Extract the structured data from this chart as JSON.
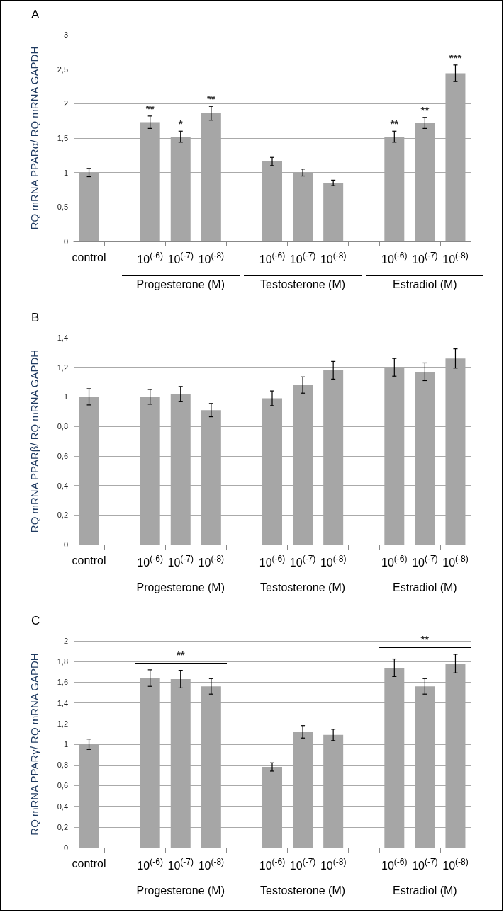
{
  "chart_data": [
    {
      "type": "bar",
      "title": "A",
      "ylabel": "RQ mRNA PPARα/ RQ mRNA GAPDH",
      "color": "#a6a6a6",
      "grid": "y",
      "categories": [
        "control",
        null,
        "10$^{(-6)}$",
        "10$^{(-7)}$",
        "10$^{(-8)}$",
        null,
        "10$^{(-6)}$",
        "10$^{(-7)}$",
        "10$^{(-8)}$",
        null,
        "10$^{(-6)}$",
        "10$^{(-7)}$",
        "10$^{(-8)}$"
      ],
      "values": [
        1.0,
        null,
        1.73,
        1.52,
        1.86,
        null,
        1.16,
        1.0,
        0.85,
        null,
        1.52,
        1.72,
        2.44
      ],
      "errors": [
        0.06,
        null,
        0.09,
        0.08,
        0.1,
        null,
        0.06,
        0.05,
        0.04,
        null,
        0.08,
        0.08,
        0.12
      ],
      "value_labels": [
        null,
        null,
        "**",
        "*",
        "**",
        null,
        null,
        null,
        null,
        null,
        "**",
        "**",
        "***"
      ],
      "ylim": [
        0,
        3
      ],
      "yticks": [
        0,
        {
          "value": 0.5,
          "label": "0,5"
        },
        1,
        {
          "value": 1.5,
          "label": "1,5"
        },
        2,
        {
          "value": 2.5,
          "label": "2,5"
        },
        3
      ],
      "annotations": [
        "Progesterone (M)",
        "Testosterone (M)",
        "Estradiol (M)"
      ]
    },
    {
      "type": "bar",
      "title": "B",
      "ylabel": "RQ mRNA PPARβ/ RQ mRNA GAPDH",
      "color": "#a6a6a6",
      "grid": "y",
      "categories": [
        "control",
        null,
        "10$^{(-6)}$",
        "10$^{(-7)}$",
        "10$^{(-8)}$",
        null,
        "10$^{(-6)}$",
        "10$^{(-7)}$",
        "10$^{(-8)}$",
        null,
        "10$^{(-6)}$",
        "10$^{(-7)}$",
        "10$^{(-8)}$"
      ],
      "values": [
        1.0,
        null,
        1.0,
        1.02,
        0.91,
        null,
        0.99,
        1.08,
        1.18,
        null,
        1.2,
        1.17,
        1.26
      ],
      "errors": [
        0.055,
        null,
        0.05,
        0.05,
        0.045,
        null,
        0.05,
        0.055,
        0.06,
        null,
        0.06,
        0.06,
        0.065
      ],
      "ylim": [
        0,
        1.4
      ],
      "yticks": [
        0,
        {
          "value": 0.2,
          "label": "0,2"
        },
        {
          "value": 0.4,
          "label": "0,4"
        },
        {
          "value": 0.6,
          "label": "0,6"
        },
        {
          "value": 0.8,
          "label": "0,8"
        },
        1,
        {
          "value": 1.2,
          "label": "1,2"
        },
        {
          "value": 1.4,
          "label": "1,4"
        }
      ],
      "annotations": [
        "Progesterone (M)",
        "Testosterone (M)",
        "Estradiol (M)"
      ]
    },
    {
      "type": "bar",
      "title": "C",
      "ylabel": "RQ mRNA PPARγ/ RQ mRNA GAPDH",
      "color": "#a6a6a6",
      "grid": "y",
      "categories": [
        "control",
        null,
        "10$^{(-6)}$",
        "10$^{(-7)}$",
        "10$^{(-8)}$",
        null,
        "10$^{(-6)}$",
        "10$^{(-7)}$",
        "10$^{(-8)}$",
        null,
        "10$^{(-6)}$",
        "10$^{(-7)}$",
        "10$^{(-8)}$"
      ],
      "values": [
        1.0,
        null,
        1.64,
        1.63,
        1.56,
        null,
        0.78,
        1.12,
        1.09,
        null,
        1.74,
        1.56,
        1.78
      ],
      "errors": [
        0.05,
        null,
        0.08,
        0.085,
        0.075,
        null,
        0.04,
        0.06,
        0.055,
        null,
        0.085,
        0.075,
        0.09
      ],
      "ylim": [
        0,
        2
      ],
      "yticks": [
        0,
        {
          "value": 0.2,
          "label": "0,2"
        },
        {
          "value": 0.4,
          "label": "0,4"
        },
        {
          "value": 0.6,
          "label": "0,6"
        },
        {
          "value": 0.8,
          "label": "0,8"
        },
        1,
        {
          "value": 1.2,
          "label": "1,2"
        },
        {
          "value": 1.4,
          "label": "1,4"
        },
        {
          "value": 1.6,
          "label": "1,6"
        },
        {
          "value": 1.8,
          "label": "1,8"
        },
        2
      ],
      "annotations": [
        "Progesterone (M)",
        "Testosterone (M)",
        "Estradiol (M)",
        "**",
        "**"
      ]
    }
  ]
}
